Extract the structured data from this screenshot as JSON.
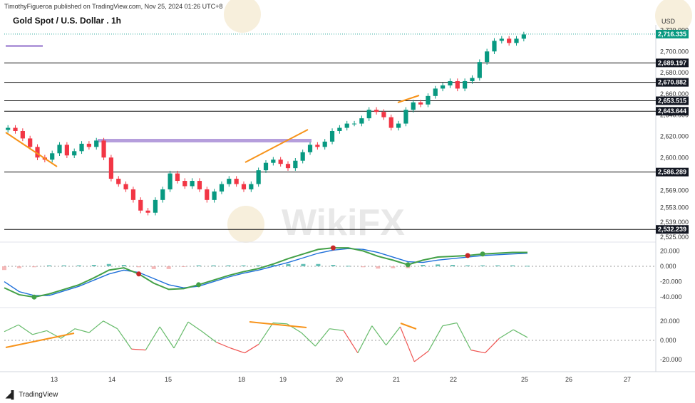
{
  "header": {
    "published": "TimothyFigueroa published on TradingView.com, Nov 25, 2024 01:26 UTC+8",
    "title": "Gold Spot / U.S. Dollar . 1h",
    "currency": "USD",
    "logo_text": "TradingView"
  },
  "watermark": "WikiFX",
  "chart_data": [
    {
      "type": "candlestick",
      "title": "Gold Spot / U.S. Dollar . 1h",
      "ylim": [
        2525,
        2725
      ],
      "y_ticks": [
        "2,720.000",
        "2,700.000",
        "2,680.000",
        "2,660.000",
        "2,640.000",
        "2,620.000",
        "2,600.000",
        "2,586.289",
        "2,569.000",
        "2,553.000",
        "2,539.000",
        "2,525.000"
      ],
      "x_ticks": [
        "13",
        "14",
        "15",
        "18",
        "19",
        "20",
        "21",
        "22",
        "25",
        "26",
        "27"
      ],
      "last_price": "2,716.335",
      "horizontal_levels": [
        "2,689.197",
        "2,670.882",
        "2,653.515",
        "2,643.644",
        "2,586.289",
        "2,532.239"
      ],
      "close_path": [
        2628,
        2625,
        2618,
        2610,
        2600,
        2598,
        2604,
        2612,
        2602,
        2606,
        2613,
        2610,
        2616,
        2600,
        2580,
        2575,
        2570,
        2560,
        2550,
        2548,
        2560,
        2570,
        2585,
        2578,
        2573,
        2578,
        2570,
        2560,
        2568,
        2575,
        2580,
        2575,
        2570,
        2575,
        2588,
        2595,
        2598,
        2594,
        2590,
        2597,
        2605,
        2612,
        2610,
        2615,
        2625,
        2628,
        2632,
        2632,
        2637,
        2645,
        2643,
        2638,
        2628,
        2632,
        2645,
        2652,
        2650,
        2658,
        2665,
        2668,
        2672,
        2665,
        2672,
        2675,
        2690,
        2700,
        2710,
        2712,
        2708,
        2712,
        2716
      ]
    },
    {
      "type": "line",
      "title": "",
      "y_ticks": [
        "20.000",
        "0.000",
        "-20.000",
        "-40.000"
      ],
      "ylim": [
        -48,
        28
      ],
      "series": [
        {
          "color": "#43a047",
          "values": [
            -28,
            -37,
            -40,
            -36,
            -30,
            -24,
            -15,
            -5,
            -2,
            -10,
            -22,
            -30,
            -29,
            -24,
            -18,
            -12,
            -7,
            -3,
            3,
            10,
            16,
            22,
            24,
            24,
            20,
            13,
            8,
            2,
            8,
            12,
            13,
            14,
            16,
            17,
            18,
            18
          ]
        },
        {
          "color": "#1e6fd9",
          "values": [
            -20,
            -33,
            -38,
            -38,
            -32,
            -26,
            -18,
            -10,
            -5,
            -8,
            -16,
            -24,
            -28,
            -26,
            -20,
            -14,
            -9,
            -5,
            0,
            5,
            11,
            17,
            21,
            23,
            22,
            18,
            12,
            6,
            5,
            8,
            10,
            12,
            14,
            15,
            16,
            17
          ]
        }
      ]
    },
    {
      "type": "line",
      "title": "",
      "y_ticks": [
        "20.000",
        "0.000",
        "-20.000"
      ],
      "ylim": [
        -28,
        28
      ],
      "series": [
        {
          "name": "",
          "values": [
            9,
            16,
            6,
            10,
            2,
            12,
            8,
            20,
            12,
            -9,
            -10,
            14,
            -8,
            19,
            9,
            -2,
            -8,
            -13,
            -4,
            18,
            17,
            8,
            -6,
            12,
            10,
            -13,
            15,
            -5,
            14,
            -22,
            -11,
            15,
            18,
            -10,
            -13,
            2,
            11,
            3
          ]
        }
      ]
    }
  ]
}
